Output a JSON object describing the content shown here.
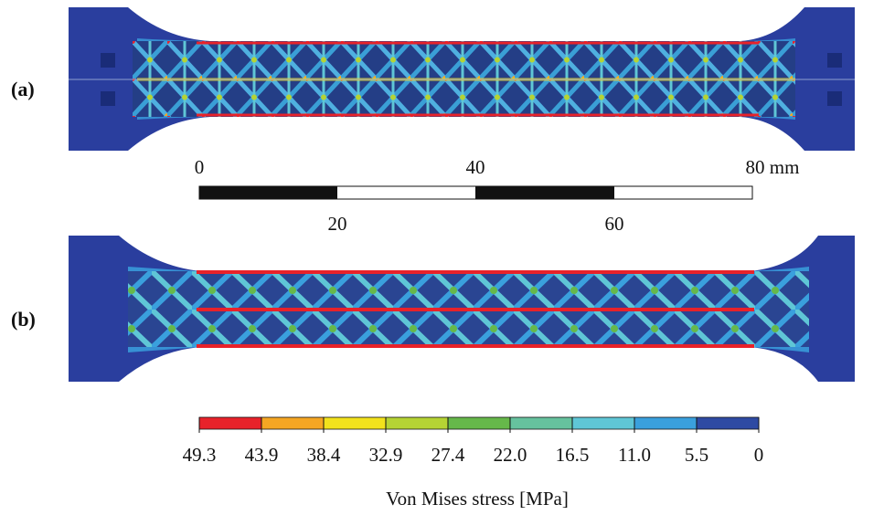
{
  "panels": [
    {
      "label": "(a)"
    },
    {
      "label": "(b)"
    }
  ],
  "scale_bar": {
    "upper_labels": [
      "0",
      "40",
      "80 mm"
    ],
    "lower_labels": [
      "20",
      "60"
    ]
  },
  "colorbar": {
    "labels": [
      "49.3",
      "43.9",
      "38.4",
      "32.9",
      "27.4",
      "22.0",
      "16.5",
      "11.0",
      "5.5",
      "0"
    ],
    "colors": [
      "#e8222a",
      "#f5a623",
      "#f2e21c",
      "#b5d334",
      "#66b84a",
      "#66c29e",
      "#5fc6d6",
      "#3aa0dd",
      "#2e4aa3"
    ],
    "title": "Von Mises stress [MPa]"
  }
}
